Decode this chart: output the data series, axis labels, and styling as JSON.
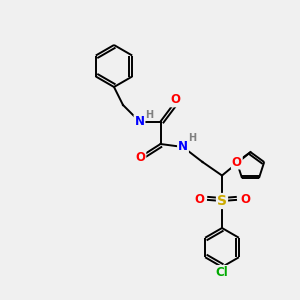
{
  "background_color": "#f0f0f0",
  "atom_colors": {
    "N": "#0000ff",
    "O": "#ff0000",
    "S": "#ccaa00",
    "Cl": "#00aa00",
    "C": "#000000",
    "H": "#808080"
  },
  "bond_color": "#000000",
  "bond_width": 1.4,
  "font_size_atom": 8.5,
  "font_size_h": 7.0,
  "font_size_cl": 8.5
}
